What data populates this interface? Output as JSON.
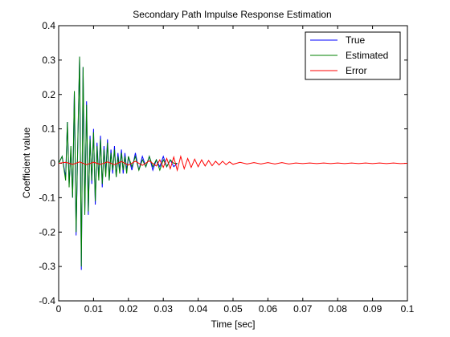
{
  "chart_data": {
    "type": "line",
    "title": "Secondary Path Impulse Response Estimation",
    "xlabel": "Time [sec]",
    "ylabel": "Coefficient value",
    "xlim": [
      0,
      0.1
    ],
    "ylim": [
      -0.4,
      0.4
    ],
    "xticks": [
      0,
      0.01,
      0.02,
      0.03,
      0.04,
      0.05,
      0.06,
      0.07,
      0.08,
      0.09,
      0.1
    ],
    "xtick_labels": [
      "0",
      "0.01",
      "0.02",
      "0.03",
      "0.04",
      "0.05",
      "0.06",
      "0.07",
      "0.08",
      "0.09",
      "0.1"
    ],
    "yticks": [
      -0.4,
      -0.3,
      -0.2,
      -0.1,
      0,
      0.1,
      0.2,
      0.3,
      0.4
    ],
    "ytick_labels": [
      "-0.4",
      "-0.3",
      "-0.2",
      "-0.1",
      "0",
      "0.1",
      "0.2",
      "0.3",
      "0.4"
    ],
    "grid": false,
    "legend_position": "top-right",
    "series": [
      {
        "name": "True",
        "color": "#0000ff",
        "x": [
          0,
          0.001,
          0.002,
          0.0025,
          0.003,
          0.0035,
          0.004,
          0.0045,
          0.005,
          0.0055,
          0.006,
          0.0065,
          0.007,
          0.0075,
          0.008,
          0.0085,
          0.009,
          0.0095,
          0.01,
          0.0105,
          0.011,
          0.0115,
          0.012,
          0.0125,
          0.013,
          0.0135,
          0.014,
          0.0145,
          0.015,
          0.0155,
          0.016,
          0.0165,
          0.017,
          0.0175,
          0.018,
          0.0185,
          0.019,
          0.0195,
          0.02,
          0.021,
          0.022,
          0.023,
          0.024,
          0.025,
          0.026,
          0.027,
          0.028,
          0.029,
          0.03,
          0.031,
          0.032,
          0.033,
          0.034
        ],
        "y": [
          0,
          0.02,
          -0.04,
          0.12,
          -0.06,
          0.04,
          -0.1,
          0.21,
          -0.21,
          0.06,
          0.31,
          -0.31,
          0.28,
          -0.14,
          0.18,
          -0.15,
          0.08,
          -0.06,
          0.1,
          -0.12,
          0.06,
          -0.04,
          0.08,
          -0.07,
          0.05,
          -0.03,
          0.07,
          -0.05,
          0.04,
          -0.03,
          0.05,
          -0.04,
          0.03,
          -0.02,
          0.04,
          -0.03,
          0.03,
          -0.02,
          0.02,
          -0.02,
          0.03,
          -0.02,
          0.02,
          -0.01,
          0.02,
          -0.02,
          0.01,
          -0.01,
          0.02,
          -0.01,
          0.01,
          -0.01,
          0
        ]
      },
      {
        "name": "Estimated",
        "color": "#008000",
        "x": [
          0,
          0.001,
          0.002,
          0.0025,
          0.003,
          0.0035,
          0.004,
          0.0045,
          0.005,
          0.0055,
          0.006,
          0.0065,
          0.007,
          0.0075,
          0.008,
          0.0085,
          0.009,
          0.0095,
          0.01,
          0.0105,
          0.011,
          0.0115,
          0.012,
          0.0125,
          0.013,
          0.0135,
          0.014,
          0.0145,
          0.015,
          0.0155,
          0.016,
          0.0165,
          0.017,
          0.0175,
          0.018,
          0.0185,
          0.019,
          0.0195,
          0.02,
          0.021,
          0.022,
          0.023,
          0.024,
          0.025,
          0.026,
          0.027,
          0.028,
          0.029,
          0.03,
          0.031,
          0.032,
          0.033,
          0.034
        ],
        "y": [
          0,
          0.02,
          -0.05,
          0.12,
          -0.07,
          0.05,
          -0.1,
          0.21,
          -0.2,
          0.07,
          0.31,
          -0.3,
          0.28,
          -0.15,
          0.17,
          -0.14,
          0.07,
          -0.05,
          0.09,
          -0.11,
          0.05,
          -0.05,
          0.07,
          -0.06,
          0.04,
          -0.04,
          0.06,
          -0.05,
          0.03,
          -0.02,
          0.04,
          -0.04,
          0.02,
          -0.03,
          0.03,
          -0.02,
          0.02,
          -0.03,
          0.02,
          -0.01,
          0.02,
          -0.02,
          0.01,
          -0.01,
          0.02,
          -0.01,
          0.01,
          -0.02,
          0.01,
          -0.01,
          0.01,
          0,
          0
        ]
      },
      {
        "name": "Error",
        "color": "#ff0000",
        "x": [
          0,
          0.002,
          0.004,
          0.006,
          0.008,
          0.01,
          0.012,
          0.014,
          0.016,
          0.018,
          0.02,
          0.022,
          0.024,
          0.026,
          0.028,
          0.029,
          0.03,
          0.031,
          0.032,
          0.033,
          0.034,
          0.035,
          0.036,
          0.037,
          0.038,
          0.039,
          0.04,
          0.041,
          0.042,
          0.043,
          0.044,
          0.045,
          0.046,
          0.047,
          0.048,
          0.049,
          0.05,
          0.052,
          0.054,
          0.056,
          0.058,
          0.06,
          0.062,
          0.064,
          0.066,
          0.068,
          0.07,
          0.072,
          0.074,
          0.076,
          0.078,
          0.08,
          0.082,
          0.084,
          0.086,
          0.088,
          0.09,
          0.092,
          0.094,
          0.096,
          0.098,
          0.1
        ],
        "y": [
          0,
          0.003,
          -0.003,
          0.004,
          -0.004,
          0.003,
          -0.003,
          0.004,
          -0.004,
          0.005,
          -0.005,
          0.006,
          -0.006,
          0.007,
          -0.008,
          0.01,
          -0.012,
          0.014,
          -0.016,
          0.018,
          -0.02,
          0.02,
          -0.016,
          0.014,
          -0.012,
          0.012,
          -0.01,
          0.01,
          -0.008,
          0.008,
          -0.007,
          0.006,
          -0.005,
          0.006,
          -0.004,
          0.004,
          -0.003,
          0.003,
          -0.002,
          0.002,
          -0.002,
          0.002,
          -0.002,
          0.002,
          -0.002,
          0.001,
          -0.001,
          0.001,
          -0.001,
          0.001,
          -0.001,
          0.001,
          -0.001,
          0.001,
          -0.001,
          0.001,
          -0.001,
          0.001,
          -0.001,
          0.001,
          -0.001,
          0
        ]
      }
    ]
  }
}
